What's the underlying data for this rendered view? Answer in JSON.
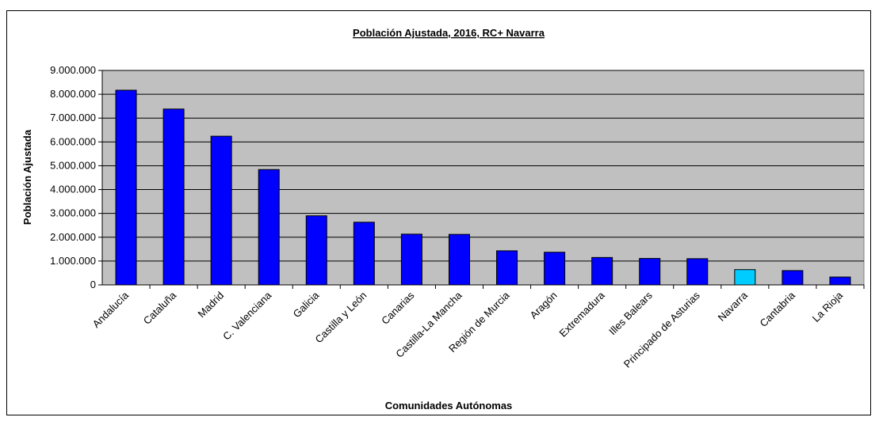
{
  "chart_data": {
    "type": "bar",
    "title": "Población Ajustada, 2016, RC+ Navarra",
    "xlabel": "Comunidades Autónomas",
    "ylabel": "Población Ajustada",
    "ylim": [
      0,
      9000000
    ],
    "yticks": [
      {
        "value": 0,
        "label": "0"
      },
      {
        "value": 1000000,
        "label": "1.000.000"
      },
      {
        "value": 2000000,
        "label": "2.000.000"
      },
      {
        "value": 3000000,
        "label": "3.000.000"
      },
      {
        "value": 4000000,
        "label": "4.000.000"
      },
      {
        "value": 5000000,
        "label": "5.000.000"
      },
      {
        "value": 6000000,
        "label": "6.000.000"
      },
      {
        "value": 7000000,
        "label": "7.000.000"
      },
      {
        "value": 8000000,
        "label": "8.000.000"
      },
      {
        "value": 9000000,
        "label": "9.000.000"
      }
    ],
    "categories": [
      "Andalucía",
      "Cataluña",
      "Madrid",
      "C. Valenciana",
      "Galicia",
      "Castilla y León",
      "Canarias",
      "Castilla-La Mancha",
      "Región de Murcia",
      "Aragón",
      "Extremadura",
      "Illes Balears",
      "Principado de Asturias",
      "Navarra",
      "Cantabria",
      "La Rioja"
    ],
    "values": [
      8170000,
      7380000,
      6240000,
      4840000,
      2900000,
      2630000,
      2130000,
      2120000,
      1430000,
      1370000,
      1150000,
      1110000,
      1100000,
      640000,
      600000,
      330000
    ],
    "highlight_category": "Navarra",
    "grid": true,
    "colors": {
      "bar": "#0000FF",
      "highlight": "#00CCFF",
      "bar_stroke": "#000000",
      "plot_background": "#C0C0C0",
      "gridline": "#000000",
      "frame": "#000000"
    }
  }
}
